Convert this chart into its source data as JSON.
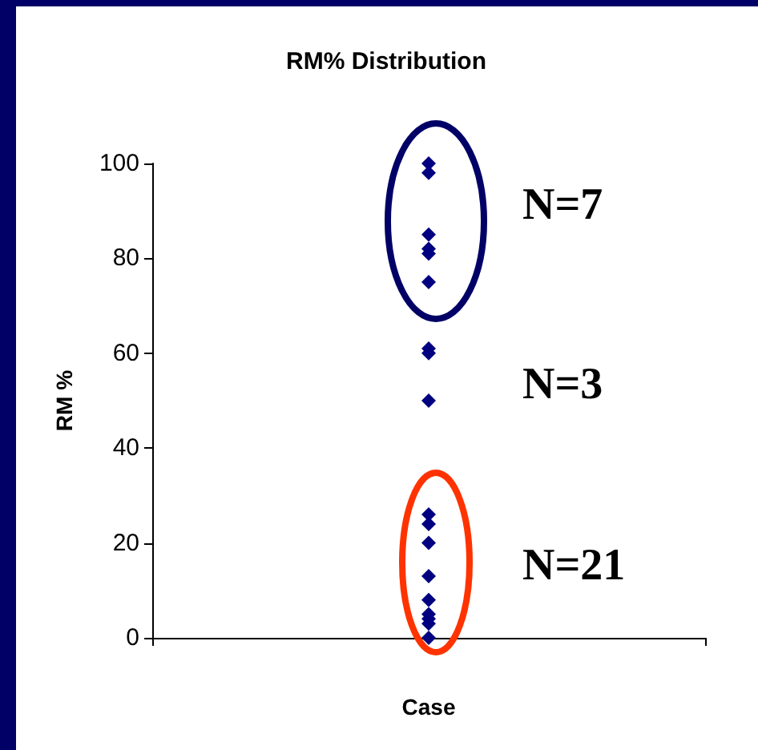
{
  "chart_data": {
    "type": "scatter",
    "title": "RM% Distribution",
    "xlabel": "Case",
    "ylabel": "RM %",
    "categories": [
      null
    ],
    "series": [
      {
        "color": "#000080",
        "values": [
          100
        ]
      },
      {
        "color": "#000080",
        "values": [
          98
        ]
      },
      {
        "color": "#000080",
        "values": [
          85
        ]
      },
      {
        "color": "#000080",
        "values": [
          82
        ]
      },
      {
        "color": "#000080",
        "values": [
          81
        ]
      },
      {
        "color": "#000080",
        "values": [
          75
        ]
      },
      {
        "color": "#000080",
        "values": [
          61
        ]
      },
      {
        "color": "#000080",
        "values": [
          60
        ]
      },
      {
        "color": "#000080",
        "values": [
          50
        ]
      },
      {
        "color": "#000080",
        "values": [
          26
        ]
      },
      {
        "color": "#000080",
        "values": [
          24
        ]
      },
      {
        "color": "#000080",
        "values": [
          20
        ]
      },
      {
        "color": "#000080",
        "values": [
          13
        ]
      },
      {
        "color": "#000080",
        "values": [
          8
        ]
      },
      {
        "color": "#000080",
        "values": [
          5
        ]
      },
      {
        "color": "#000080",
        "values": [
          4
        ]
      },
      {
        "color": "#000080",
        "values": [
          3
        ]
      },
      {
        "color": "#000080",
        "values": [
          0
        ]
      }
    ],
    "marker": "diamond",
    "ylim": [
      0,
      100
    ],
    "yticks": [
      0,
      20,
      40,
      60,
      80,
      100
    ],
    "grid": false,
    "annotations": [
      "N=7",
      "N=3",
      "N=21"
    ]
  }
}
